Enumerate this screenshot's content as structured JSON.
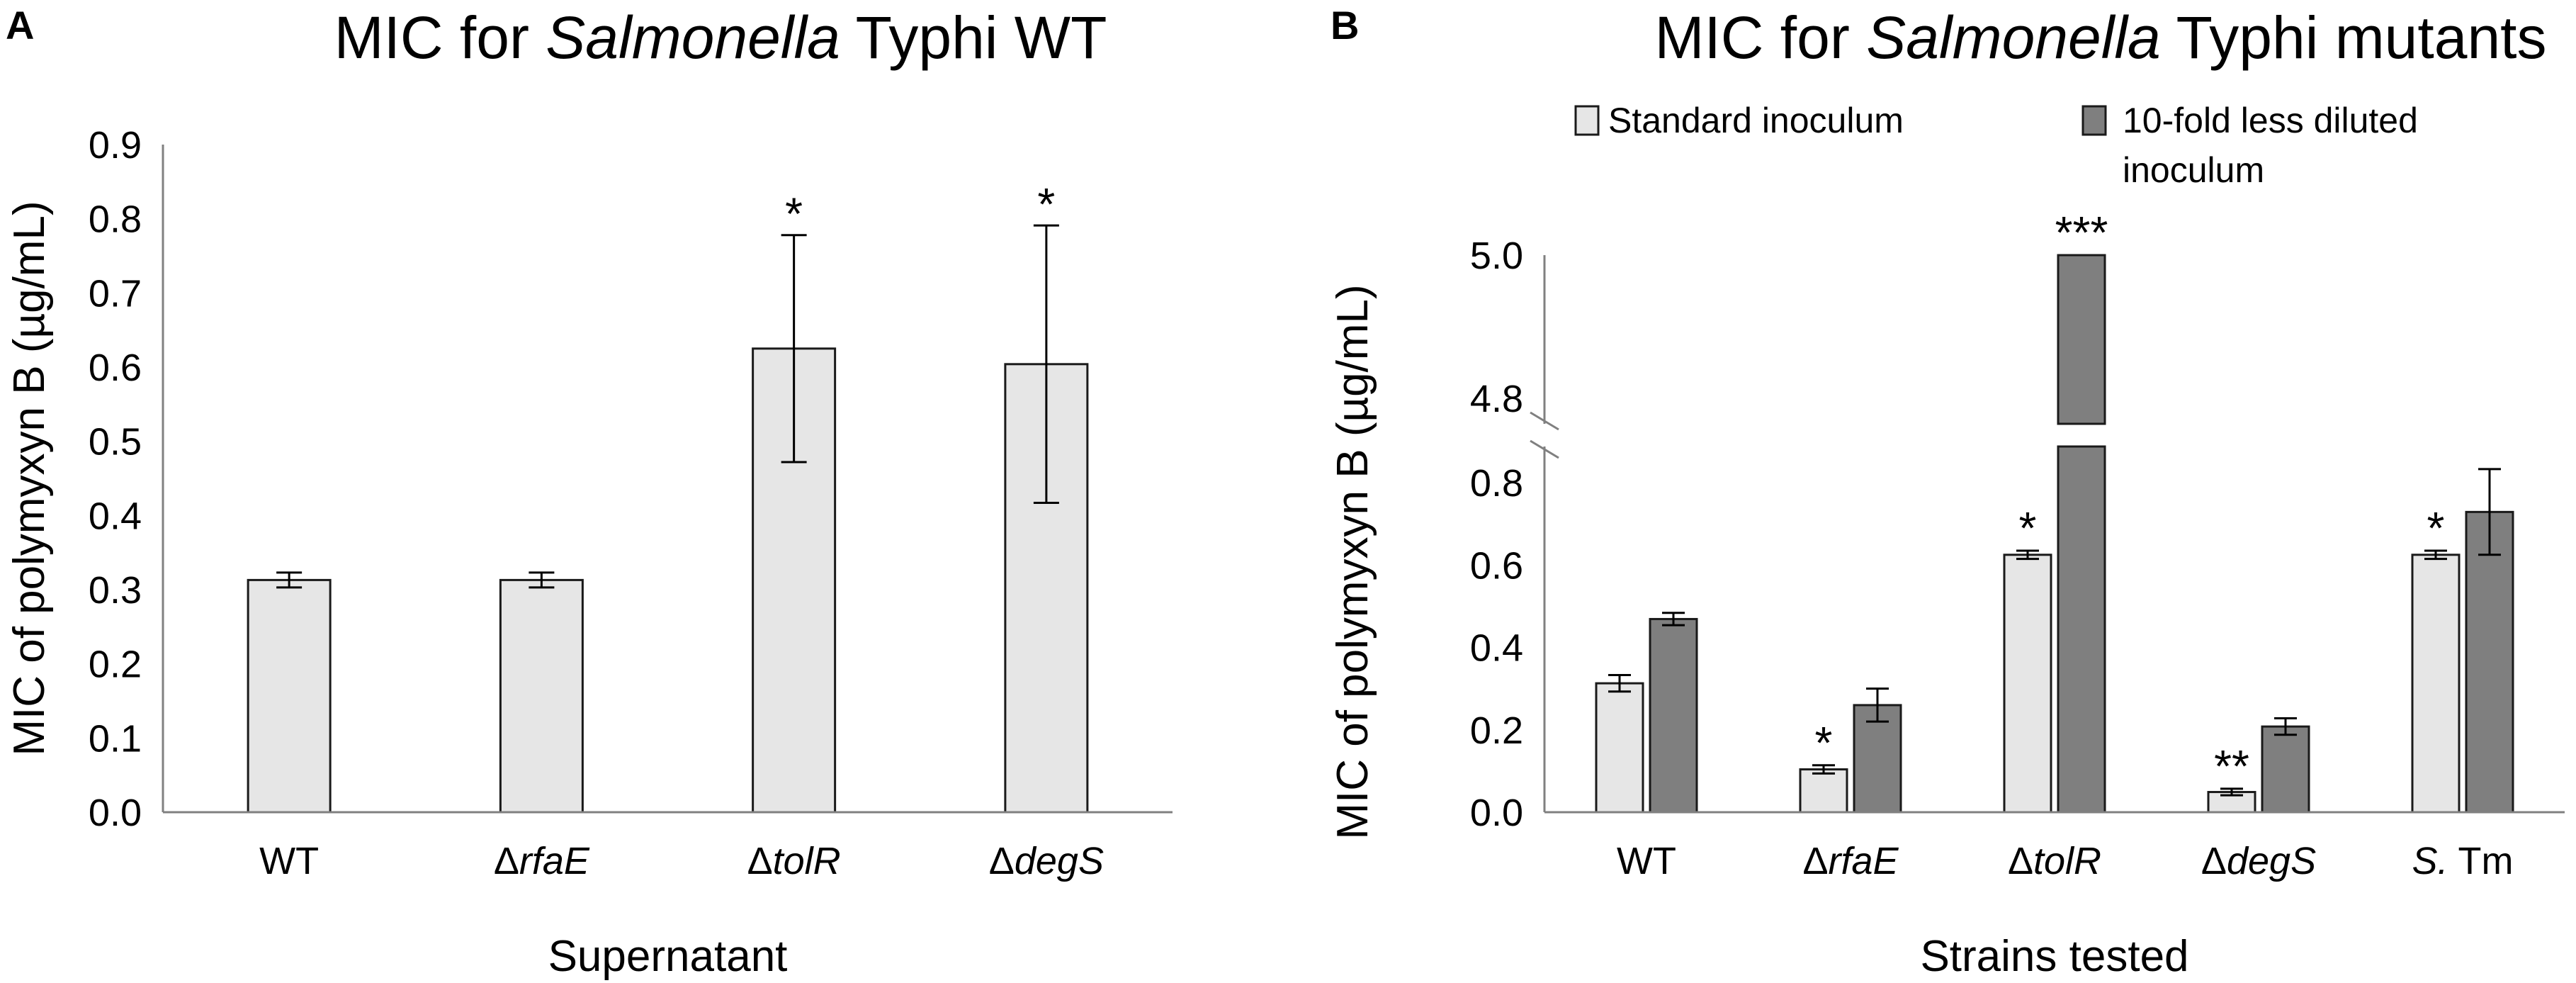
{
  "chart_data": [
    {
      "panel": "A",
      "type": "bar",
      "title": {
        "pre": "MIC for ",
        "italic": "Salmonella",
        "post": " Typhi WT"
      },
      "ylabel": "MIC of polymyxyn B (µg/mL)",
      "xlabel": "Supernatant",
      "ylim": [
        0,
        0.9
      ],
      "yticks": [
        "0.0",
        "0.1",
        "0.2",
        "0.3",
        "0.4",
        "0.5",
        "0.6",
        "0.7",
        "0.8",
        "0.9"
      ],
      "categories": [
        {
          "prefix": "",
          "name": "WT"
        },
        {
          "prefix": "Δ",
          "name": "rfaE"
        },
        {
          "prefix": "Δ",
          "name": "tolR"
        },
        {
          "prefix": "Δ",
          "name": "degS"
        }
      ],
      "values": [
        0.313,
        0.313,
        0.625,
        0.604
      ],
      "errors": [
        0.01,
        0.01,
        0.153,
        0.187
      ],
      "significance": [
        "",
        "",
        "*",
        "*"
      ]
    },
    {
      "panel": "B",
      "type": "bar",
      "title": {
        "pre": "MIC for ",
        "italic": "Salmonella",
        "post": " Typhi mutants"
      },
      "ylabel": "MIC of polymyxyn B (µg/mL)",
      "xlabel": "Strains tested",
      "ylim_lower": [
        0,
        0.9
      ],
      "ylim_upper": [
        4.8,
        5.0
      ],
      "yticks_lower": [
        "0.0",
        "0.2",
        "0.4",
        "0.6",
        "0.8"
      ],
      "yticks_upper": [
        "4.8",
        "5.0"
      ],
      "categories": [
        {
          "prefix": "",
          "name": "WT"
        },
        {
          "prefix": "Δ",
          "name": "rfaE"
        },
        {
          "prefix": "Δ",
          "name": "tolR"
        },
        {
          "prefix": "Δ",
          "name": "degS"
        },
        {
          "prefix": "S.",
          "name": " Tm"
        }
      ],
      "series": [
        {
          "name": "Standard inoculum",
          "color": "#e6e6e6",
          "values": [
            0.313,
            0.104,
            0.625,
            0.049,
            0.625
          ],
          "errors": [
            0.02,
            0.01,
            0.01,
            0.008,
            0.01
          ],
          "significance": [
            "",
            "*",
            "*",
            "**",
            "*"
          ]
        },
        {
          "name": "10-fold less diluted inoculum",
          "name_line1": "10-fold less diluted",
          "name_line2": "inoculum",
          "color": "#7f7f7f",
          "values": [
            0.469,
            0.26,
            5.0,
            0.208,
            0.729
          ],
          "errors": [
            0.015,
            0.04,
            0,
            0.02,
            0.104
          ],
          "significance": [
            "",
            "",
            "***",
            "",
            ""
          ]
        }
      ]
    }
  ]
}
